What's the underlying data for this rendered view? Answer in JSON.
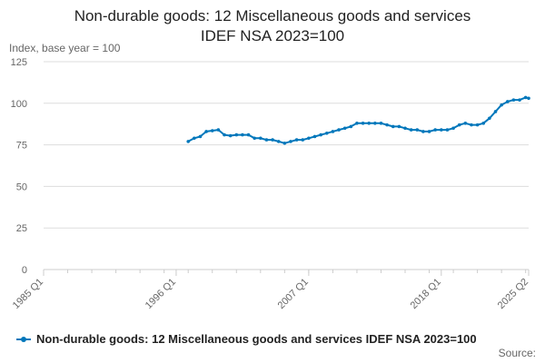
{
  "chart_data": {
    "type": "line",
    "title_line1": "Non-durable goods: 12 Miscellaneous goods and services",
    "title_line2": "IDEF NSA 2023=100",
    "ylabel": "Index, base year = 100",
    "ylim": [
      0,
      125
    ],
    "yticks": [
      0,
      25,
      50,
      75,
      100,
      125
    ],
    "xlim": [
      "1985 Q1",
      "2025 Q2"
    ],
    "xtick_labels": [
      "1985 Q1",
      "1996 Q1",
      "2007 Q1",
      "2018 Q1",
      "2025 Q2"
    ],
    "grid": true,
    "legend_position": "bottom",
    "source_label": "Source:",
    "colors": {
      "series": "#0077bb",
      "grid": "#dddddd",
      "axis": "#cccccc"
    },
    "series": [
      {
        "name": "Non-durable goods: 12 Miscellaneous goods and services IDEF NSA 2023=100",
        "points": [
          [
            "1997 Q1",
            77
          ],
          [
            "1997 Q3",
            79
          ],
          [
            "1998 Q1",
            80
          ],
          [
            "1998 Q3",
            83
          ],
          [
            "1999 Q1",
            83.5
          ],
          [
            "1999 Q3",
            84
          ],
          [
            "2000 Q1",
            81
          ],
          [
            "2000 Q3",
            80.5
          ],
          [
            "2001 Q1",
            81
          ],
          [
            "2001 Q3",
            81
          ],
          [
            "2002 Q1",
            81
          ],
          [
            "2002 Q3",
            79
          ],
          [
            "2003 Q1",
            79
          ],
          [
            "2003 Q3",
            78
          ],
          [
            "2004 Q1",
            78
          ],
          [
            "2004 Q3",
            77
          ],
          [
            "2005 Q1",
            76
          ],
          [
            "2005 Q3",
            77
          ],
          [
            "2006 Q1",
            78
          ],
          [
            "2006 Q3",
            78
          ],
          [
            "2007 Q1",
            79
          ],
          [
            "2007 Q3",
            80
          ],
          [
            "2008 Q1",
            81
          ],
          [
            "2008 Q3",
            82
          ],
          [
            "2009 Q1",
            83
          ],
          [
            "2009 Q3",
            84
          ],
          [
            "2010 Q1",
            85
          ],
          [
            "2010 Q3",
            86
          ],
          [
            "2011 Q1",
            88
          ],
          [
            "2011 Q3",
            88
          ],
          [
            "2012 Q1",
            88
          ],
          [
            "2012 Q3",
            88
          ],
          [
            "2013 Q1",
            88
          ],
          [
            "2013 Q3",
            87
          ],
          [
            "2014 Q1",
            86
          ],
          [
            "2014 Q3",
            86
          ],
          [
            "2015 Q1",
            85
          ],
          [
            "2015 Q3",
            84
          ],
          [
            "2016 Q1",
            84
          ],
          [
            "2016 Q3",
            83
          ],
          [
            "2017 Q1",
            83
          ],
          [
            "2017 Q3",
            84
          ],
          [
            "2018 Q1",
            84
          ],
          [
            "2018 Q3",
            84
          ],
          [
            "2019 Q1",
            85
          ],
          [
            "2019 Q3",
            87
          ],
          [
            "2020 Q1",
            88
          ],
          [
            "2020 Q3",
            87
          ],
          [
            "2021 Q1",
            87
          ],
          [
            "2021 Q3",
            88
          ],
          [
            "2022 Q1",
            91
          ],
          [
            "2022 Q3",
            95
          ],
          [
            "2023 Q1",
            99
          ],
          [
            "2023 Q3",
            101
          ],
          [
            "2024 Q1",
            102
          ],
          [
            "2024 Q3",
            102
          ],
          [
            "2025 Q1",
            103.5
          ],
          [
            "2025 Q2",
            103
          ]
        ]
      }
    ]
  }
}
